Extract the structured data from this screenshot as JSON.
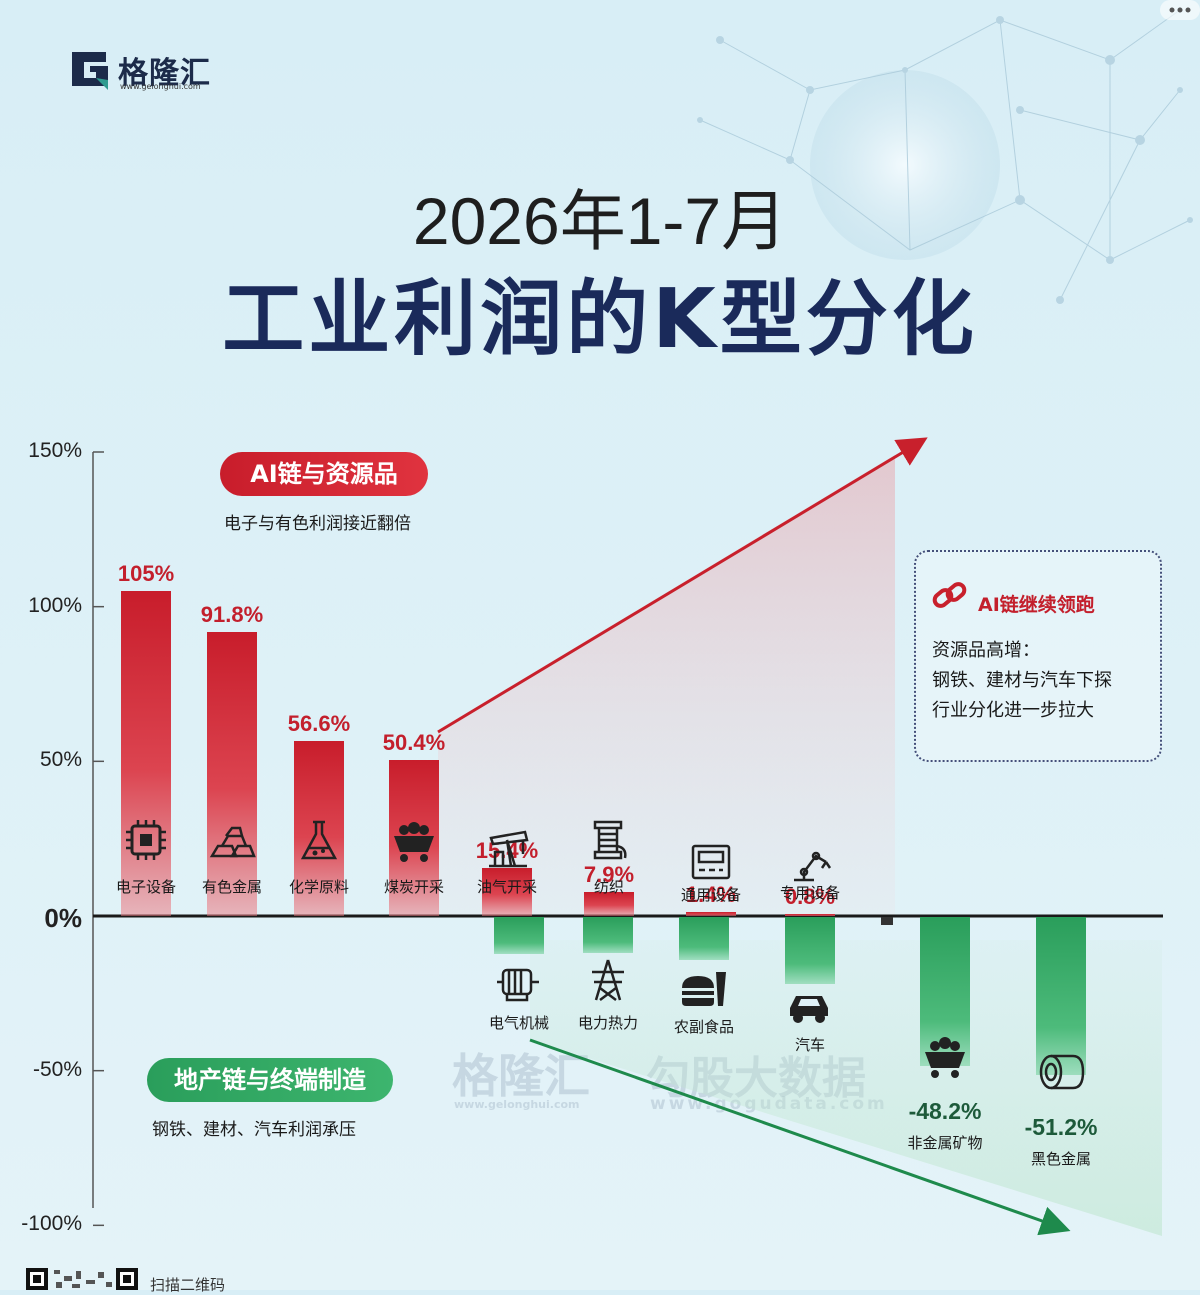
{
  "brand": {
    "name": "格隆汇",
    "url": "www.gelonghui.com"
  },
  "title": {
    "line1": "2026年1-7月",
    "line2": "工业利润的K型分化"
  },
  "callouts": {
    "ai": {
      "label": "AI链与资源品",
      "sub": "电子与有色利润接近翻倍"
    },
    "realestate": {
      "label": "地产链与终端制造",
      "sub": "钢铁、建材、汽车利润承压"
    },
    "note": {
      "title": "AI链继续领跑",
      "lines": [
        "资源品高增：",
        "钢铁、建材与汽车下探",
        "行业分化进一步拉大"
      ]
    }
  },
  "watermark": {
    "brand": "格隆汇",
    "brand_url": "www.gelonghui.com",
    "partner": "勾股大数据",
    "partner_url": "www.gogudata.com"
  },
  "footer": {
    "qr_label": "扫描二维码"
  },
  "chart_data": {
    "type": "bar",
    "ylim": [
      -100,
      150
    ],
    "yticks": [
      150,
      100,
      50,
      0,
      -50,
      -100
    ],
    "ytick_labels": [
      "150%",
      "100%",
      "50%",
      "0%",
      "-50%",
      "-100%"
    ],
    "colors": {
      "positive": "#c81d2b",
      "negative": "#2a9e5b",
      "arrow_up": "#c8202c",
      "arrow_down": "#1e8a4c"
    },
    "bars": [
      {
        "category": "电子设备",
        "value": 105,
        "label": "105%",
        "icon": "chip-icon"
      },
      {
        "category": "有色金属",
        "value": 91.8,
        "label": "91.8%",
        "icon": "gold-bars-icon"
      },
      {
        "category": "化学原料",
        "value": 56.6,
        "label": "56.6%",
        "icon": "flask-icon"
      },
      {
        "category": "煤炭开采",
        "value": 50.4,
        "label": "50.4%",
        "icon": "coal-cart-icon"
      },
      {
        "category": "油气开采",
        "value": 15.4,
        "label": "15.4%",
        "icon": "oil-pump-icon"
      },
      {
        "category": "纺织",
        "value": 7.9,
        "label": "7.9%",
        "icon": "spool-icon"
      },
      {
        "category": "通用设备",
        "value": 1.4,
        "label": "1.4%",
        "icon": "machine-icon"
      },
      {
        "category": "专用设备",
        "value": 0.8,
        "label": "0.8%",
        "icon": "robot-arm-icon"
      },
      {
        "category": "电气机械",
        "value": -12,
        "label": "",
        "icon": "motor-icon"
      },
      {
        "category": "电力热力",
        "value": -11.5,
        "label": "",
        "icon": "power-tower-icon"
      },
      {
        "category": "农副食品",
        "value": -14,
        "label": "",
        "icon": "burger-icon"
      },
      {
        "category": "汽车",
        "value": -21.5,
        "label": "",
        "icon": "car-icon"
      },
      {
        "category": "",
        "value": -2.5,
        "label": "",
        "icon": ""
      },
      {
        "category": "非金属矿物",
        "value": -48.2,
        "label": "-48.2%",
        "icon": "mine-cart-icon"
      },
      {
        "category": "黑色金属",
        "value": -51.2,
        "label": "-51.2%",
        "icon": "steel-coil-icon"
      }
    ]
  }
}
